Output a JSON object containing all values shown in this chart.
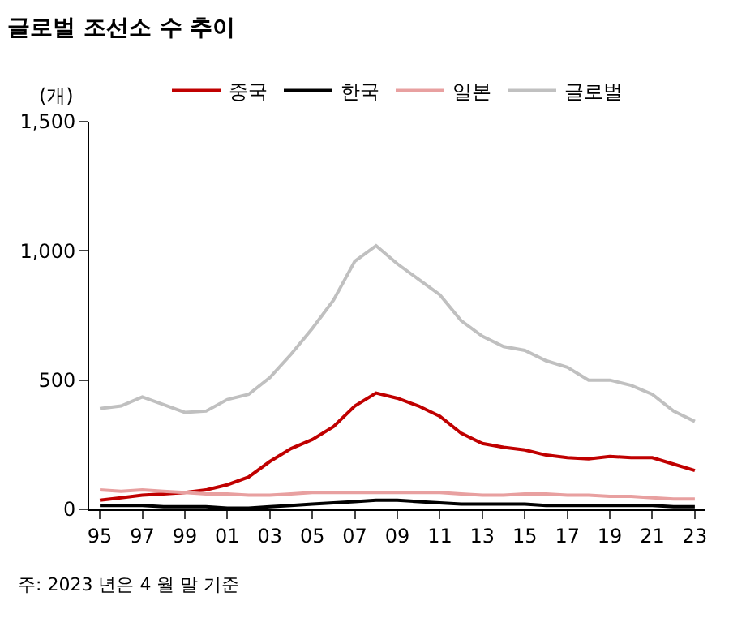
{
  "chart_data": {
    "type": "line",
    "title": "글로벌 조선소 수 추이",
    "ylabel": "(개)",
    "categories": [
      "95",
      null,
      "97",
      null,
      "99",
      null,
      "01",
      null,
      "03",
      null,
      "05",
      null,
      "07",
      null,
      "09",
      null,
      "11",
      null,
      "13",
      null,
      "15",
      null,
      "17",
      null,
      "19",
      null,
      "21",
      null,
      "23"
    ],
    "series": [
      {
        "name": "중국",
        "color": "#c00000",
        "values": [
          35,
          45,
          55,
          60,
          65,
          75,
          95,
          125,
          185,
          235,
          270,
          320,
          400,
          450,
          430,
          400,
          360,
          295,
          255,
          240,
          230,
          210,
          200,
          195,
          205,
          200,
          200,
          175,
          150
        ]
      },
      {
        "name": "한국",
        "color": "#000000",
        "values": [
          15,
          15,
          15,
          10,
          10,
          10,
          5,
          5,
          10,
          15,
          20,
          25,
          30,
          35,
          35,
          30,
          25,
          20,
          20,
          20,
          20,
          15,
          15,
          15,
          15,
          15,
          15,
          10,
          10
        ]
      },
      {
        "name": "일본",
        "color": "#e8a0a0",
        "values": [
          75,
          70,
          75,
          70,
          65,
          60,
          60,
          55,
          55,
          60,
          65,
          65,
          65,
          65,
          65,
          65,
          65,
          60,
          55,
          55,
          60,
          60,
          55,
          55,
          50,
          50,
          45,
          40,
          40
        ]
      },
      {
        "name": "글로벌",
        "color": "#c0c0c0",
        "values": [
          390,
          400,
          435,
          405,
          375,
          380,
          425,
          445,
          510,
          600,
          700,
          810,
          960,
          1020,
          950,
          890,
          830,
          730,
          670,
          630,
          615,
          575,
          550,
          500,
          500,
          480,
          445,
          380,
          340
        ]
      }
    ],
    "ylim": [
      0,
      1500
    ],
    "yticks": [
      0,
      500,
      {
        "value": 1000,
        "label": "1,000"
      },
      {
        "value": 1500,
        "label": "1,500"
      }
    ],
    "legend": "top",
    "marker": "none",
    "line_style": "solid",
    "annotations": [
      "주: 2023 년은 4 월 말 기준"
    ]
  }
}
